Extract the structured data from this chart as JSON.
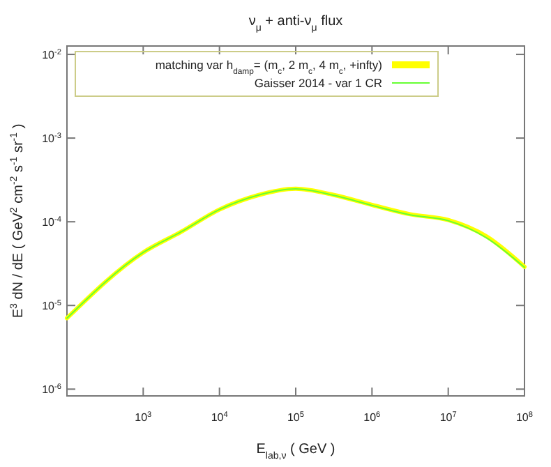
{
  "chart_data": {
    "type": "line",
    "title": "ν$_{μ}$ + anti-ν$_{μ}$  flux",
    "xlabel": "E$_{lab,ν}$    ( GeV )",
    "ylabel": "E$^{3}$ dN / dE    ( GeV$^{2}$ cm$^{-2}$ s$^{-1}$ sr$^{-1}$ )",
    "log": "xy",
    "grid": false,
    "legend": "top",
    "xlim": [
      100,
      100000000
    ],
    "ylim": [
      8.3e-07,
      0.0126
    ],
    "xticks": [
      {
        "value": 100,
        "label": null
      },
      {
        "value": 1000,
        "label": "10$^{3}$"
      },
      {
        "value": 10000,
        "label": "10$^{4}$"
      },
      {
        "value": 100000,
        "label": "10$^{5}$"
      },
      {
        "value": 1000000,
        "label": "10$^{6}$"
      },
      {
        "value": 10000000,
        "label": "10$^{7}$"
      },
      {
        "value": 100000000,
        "label": "10$^{8}$"
      }
    ],
    "yticks": [
      {
        "value": 1e-06,
        "label": "10$^{-6}$"
      },
      {
        "value": 1e-05,
        "label": "10$^{-5}$"
      },
      {
        "value": 0.0001,
        "label": "10$^{-4}$"
      },
      {
        "value": 0.001,
        "label": "10$^{-3}$"
      },
      {
        "value": 0.01,
        "label": "10$^{-2}$"
      }
    ],
    "x": [
      100,
      1000,
      3162,
      10000,
      31623,
      100000,
      316228,
      1000000,
      3162278,
      10000000,
      31622777,
      100000000
    ],
    "series": [
      {
        "name": "matching var h$_{damp}$= (m$_{c}$, 2 m$_{c}$, 4 m$_{c}$, +infty)",
        "type": "line",
        "color": "#ffff00",
        "values": [
          7.05e-06,
          4.3e-05,
          7.6e-05,
          0.00014,
          0.000207,
          0.000248,
          0.000209,
          0.000159,
          0.000123,
          0.000105,
          6.7e-05,
          2.9e-05
        ]
      },
      {
        "name": "Gaisser 2014 - var 1 CR",
        "type": "line",
        "color": "#66ff33",
        "values": [
          7.05e-06,
          4.3e-05,
          7.6e-05,
          0.00014,
          0.000207,
          0.000247,
          0.000207,
          0.000157,
          0.000121,
          0.000103,
          6.45e-05,
          2.85e-05
        ]
      }
    ]
  }
}
